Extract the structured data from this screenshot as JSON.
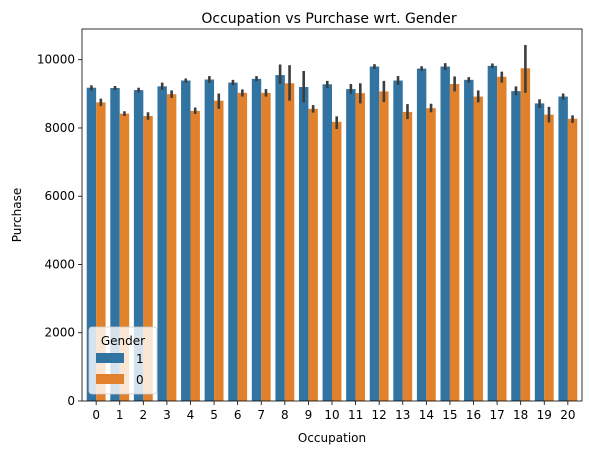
{
  "chart_data": {
    "type": "bar",
    "title": "Occupation vs Purchase wrt. Gender",
    "xlabel": "Occupation",
    "ylabel": "Purchase",
    "categories": [
      "0",
      "1",
      "2",
      "3",
      "4",
      "5",
      "6",
      "7",
      "8",
      "9",
      "10",
      "11",
      "12",
      "13",
      "14",
      "15",
      "16",
      "17",
      "18",
      "19",
      "20"
    ],
    "ylim": [
      0,
      10900
    ],
    "yticks": [
      0,
      2000,
      4000,
      6000,
      8000,
      10000
    ],
    "ytick_labels": [
      "0",
      "2000",
      "4000",
      "6000",
      "8000",
      "10000"
    ],
    "grid": false,
    "legend": {
      "title": "Gender",
      "placement": "lower-left"
    },
    "series": [
      {
        "name": "1",
        "color": "#3274a1",
        "values": [
          9180,
          9170,
          9110,
          9220,
          9390,
          9420,
          9330,
          9440,
          9550,
          9200,
          9280,
          9140,
          9800,
          9390,
          9740,
          9800,
          9410,
          9820,
          9080,
          8720,
          8920
        ],
        "ci_low": [
          9100,
          9110,
          9040,
          9120,
          9330,
          9320,
          9250,
          9370,
          9290,
          8750,
          9170,
          9000,
          9730,
          9260,
          9670,
          9700,
          9330,
          9750,
          8960,
          8590,
          8830
        ],
        "ci_high": [
          9250,
          9230,
          9180,
          9330,
          9450,
          9520,
          9410,
          9520,
          9860,
          9670,
          9380,
          9290,
          9870,
          9520,
          9810,
          9900,
          9490,
          9890,
          9220,
          8840,
          9010
        ]
      },
      {
        "name": "0",
        "color": "#e1812c",
        "values": [
          8750,
          8420,
          8350,
          8990,
          8500,
          8800,
          9030,
          9030,
          9310,
          8560,
          8180,
          9020,
          9070,
          8470,
          8580,
          9290,
          8920,
          9500,
          9750,
          8390,
          8270
        ],
        "ci_low": [
          8640,
          8350,
          8240,
          8880,
          8410,
          8560,
          8920,
          8920,
          8800,
          8450,
          7970,
          8720,
          8760,
          8260,
          8460,
          9070,
          8750,
          9330,
          9030,
          8160,
          8150
        ],
        "ci_high": [
          8860,
          8490,
          8460,
          9100,
          8600,
          9010,
          9130,
          9140,
          9840,
          8670,
          8340,
          9310,
          9380,
          8700,
          8710,
          9510,
          9100,
          9650,
          10430,
          8620,
          8370
        ]
      }
    ]
  }
}
